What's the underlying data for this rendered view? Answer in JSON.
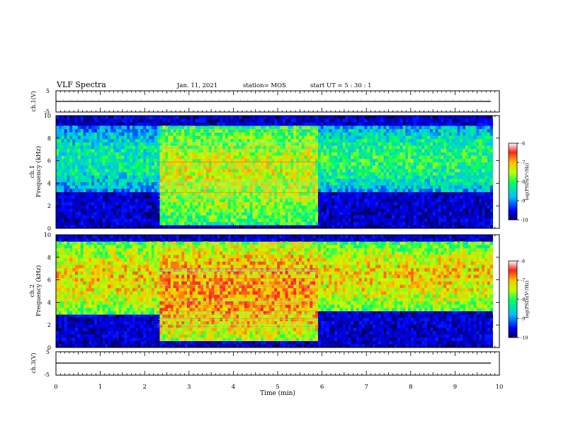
{
  "header": {
    "title": "VLF Spectra",
    "date": "Jan. 11, 2021",
    "station": "station= MOS",
    "start_time": "start  UT =   5 : 30 : 1"
  },
  "chart_data": [
    {
      "type": "line",
      "panel": "ch1-waveform",
      "ylabel": "ch.1(V)",
      "ylim": [
        -5,
        5
      ],
      "yticks": [
        "5",
        "-5"
      ],
      "x": [
        0,
        10
      ],
      "values": [
        0,
        0
      ]
    },
    {
      "type": "heatmap",
      "panel": "ch1-spectrogram",
      "ylabel": "ch.1\nFrequency (kHz)",
      "ylim": [
        0,
        10
      ],
      "yticks": [
        "0",
        "2",
        "4",
        "6",
        "8",
        "10"
      ],
      "xlim": [
        0,
        10
      ],
      "data_end_min": 9.85,
      "colorbar": {
        "label": "log(PSD)(V²/Hz)",
        "range": [
          -10,
          -6
        ],
        "ticks": [
          "-6",
          "-7",
          "-8",
          "-9",
          "-10"
        ]
      },
      "segments": [
        {
          "t0": 0,
          "t1": 2.3,
          "f_low": 3.2,
          "f_high": 9.0,
          "level": -8.3
        },
        {
          "t0": 2.3,
          "t1": 5.9,
          "f_low": 0.4,
          "f_high": 9.2,
          "level": -7.4
        },
        {
          "t0": 5.9,
          "t1": 9.85,
          "f_low": 3.3,
          "f_high": 9.0,
          "level": -8.1
        }
      ]
    },
    {
      "type": "heatmap",
      "panel": "ch2-spectrogram",
      "ylabel": "ch.2\nFrequency (kHz)",
      "ylim": [
        0,
        10
      ],
      "yticks": [
        "0",
        "2",
        "4",
        "6",
        "8",
        "10"
      ],
      "xlim": [
        0,
        10
      ],
      "data_end_min": 9.85,
      "colorbar": {
        "label": "log(PSD)(V²/Hz)",
        "range": [
          -10,
          -6
        ],
        "ticks": [
          "-6",
          "-7",
          "-8",
          "-9",
          "-10"
        ]
      },
      "segments": [
        {
          "t0": 0,
          "t1": 2.3,
          "f_low": 3.0,
          "f_high": 9.3,
          "level": -7.2
        },
        {
          "t0": 2.3,
          "t1": 5.9,
          "f_low": 0.5,
          "f_high": 9.5,
          "level": -6.9
        },
        {
          "t0": 5.9,
          "t1": 9.85,
          "f_low": 3.2,
          "f_high": 9.3,
          "level": -7.2
        }
      ]
    },
    {
      "type": "line",
      "panel": "ch3-waveform",
      "ylabel": "ch.3(V)",
      "ylim": [
        -5,
        5
      ],
      "yticks": [
        "5",
        "-5"
      ],
      "x": [
        0,
        10
      ],
      "values": [
        0,
        0
      ]
    }
  ],
  "xaxis": {
    "label": "Time (min)",
    "range": [
      0,
      10
    ],
    "ticks": [
      "0",
      "1",
      "2",
      "3",
      "4",
      "5",
      "6",
      "7",
      "8",
      "9",
      "10"
    ]
  }
}
